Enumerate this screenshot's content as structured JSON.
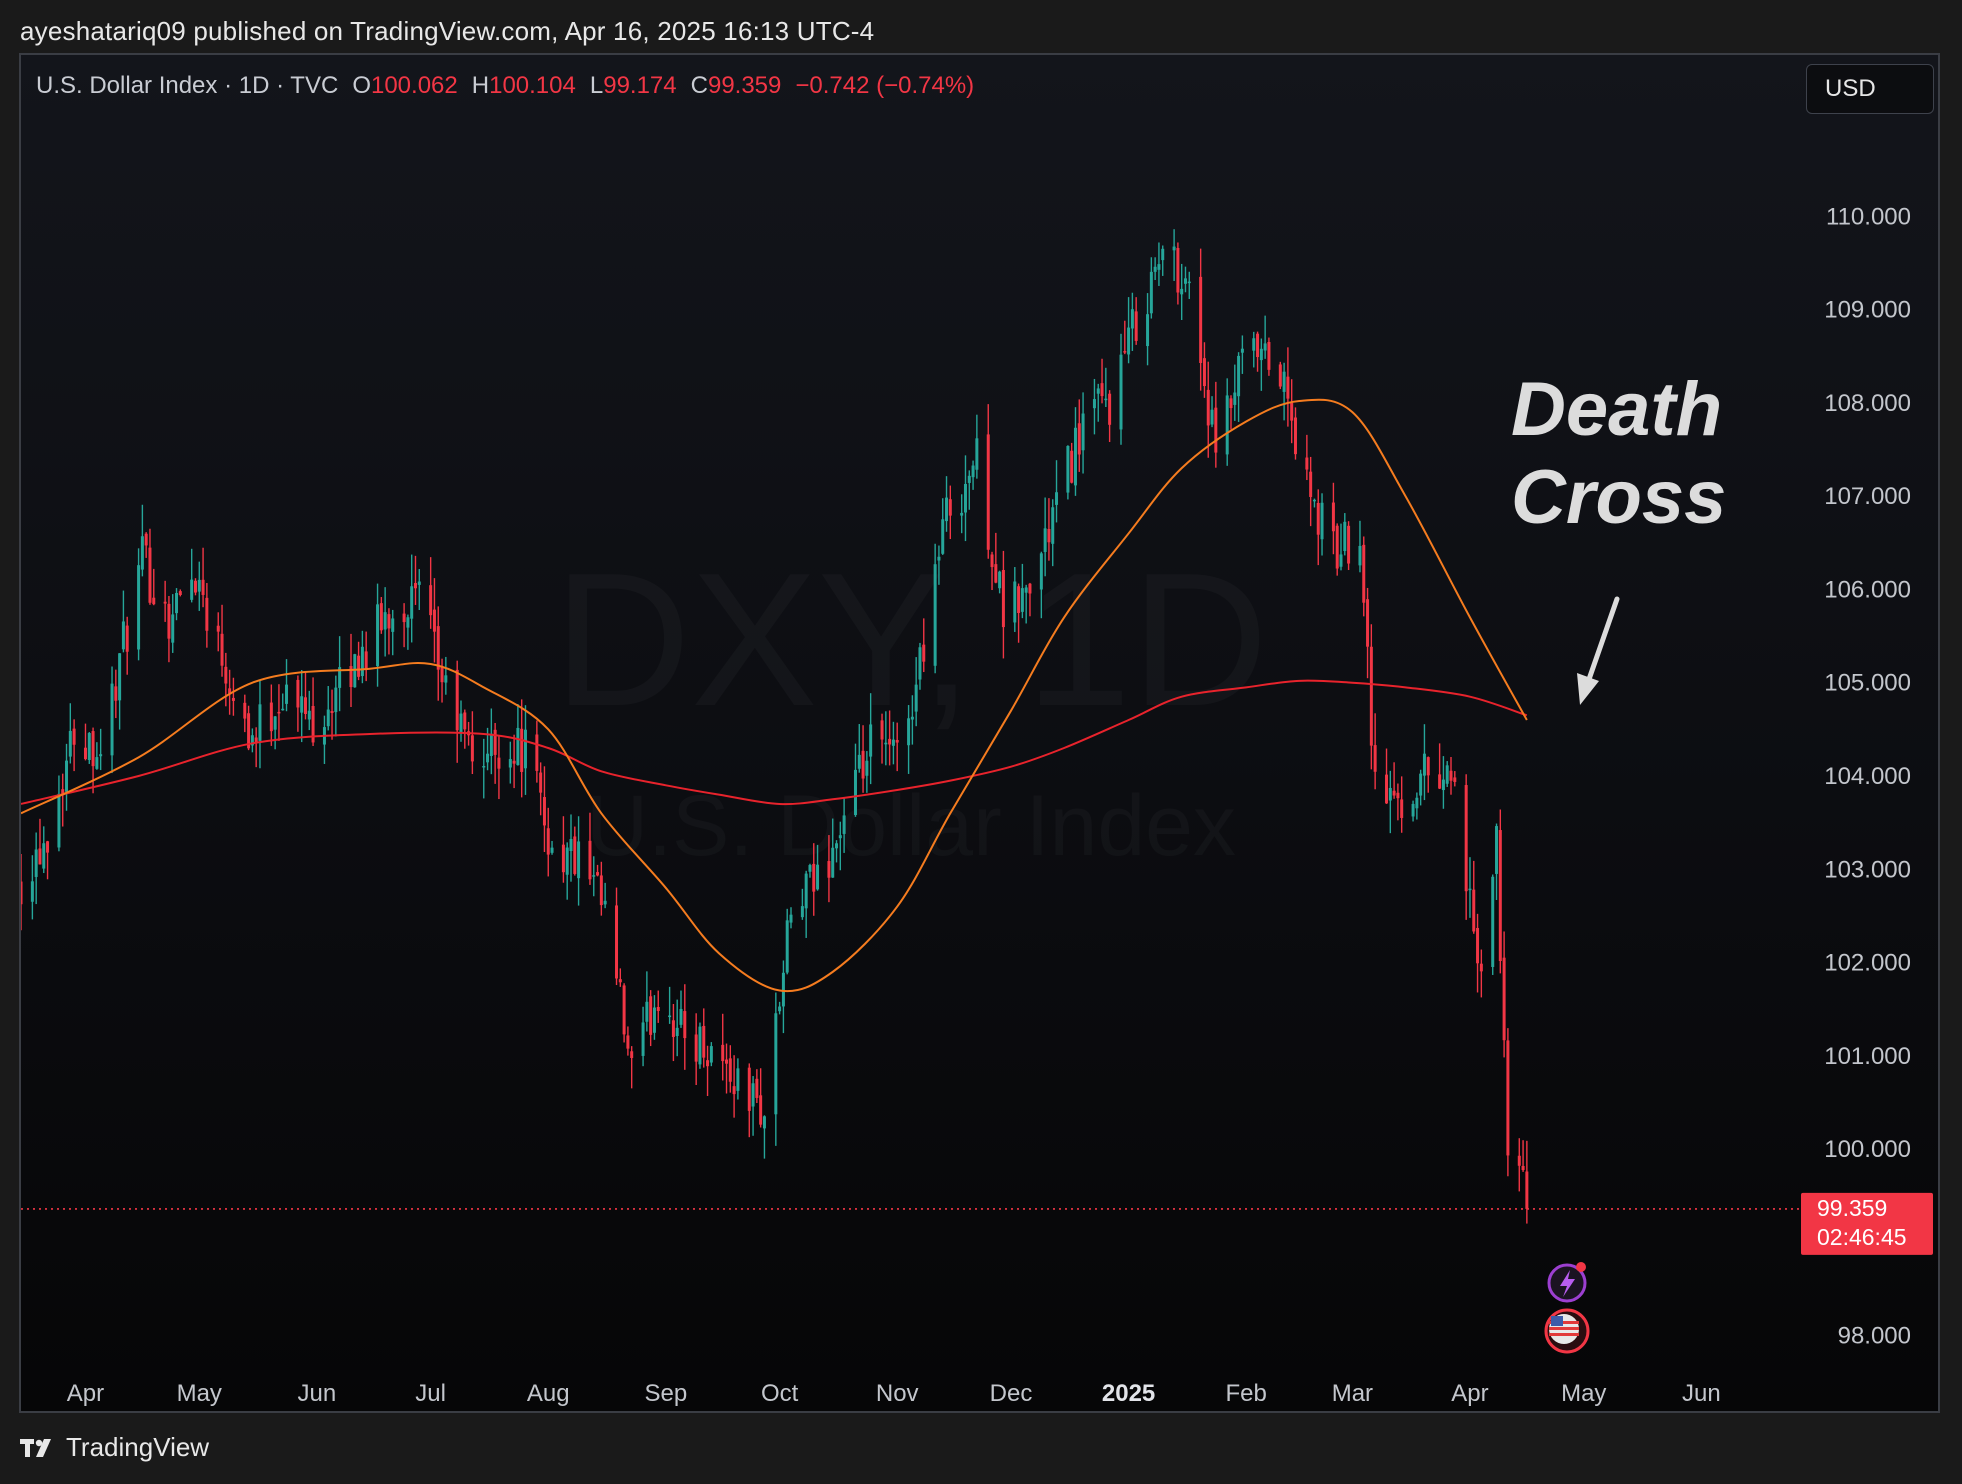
{
  "header": {
    "published_line": "ayeshatariq09 published on TradingView.com, Apr 16, 2025 16:13 UTC-4"
  },
  "legend": {
    "symbol": "U.S. Dollar Index · 1D · TVC",
    "open_label": "O",
    "open": "100.062",
    "high_label": "H",
    "high": "100.104",
    "low_label": "L",
    "low": "99.174",
    "close_label": "C",
    "close": "99.359",
    "change": "−0.742 (−0.74%)"
  },
  "currency_button": {
    "label": "USD"
  },
  "watermark": {
    "ticker": "DXY, 1D",
    "name": "U.S. Dollar Index"
  },
  "annotation": {
    "line1": "Death",
    "line2": "Cross"
  },
  "price_tag": {
    "price": "99.359",
    "countdown": "02:46:45"
  },
  "footer": {
    "brand": "TradingView"
  },
  "colors": {
    "up": "#26a69a",
    "down": "#f23645",
    "sma_fast": "#f57c1f",
    "sma_slow": "#e8232c",
    "price_line": "#f23645"
  },
  "icons": [
    "lightning-icon",
    "us-flag-icon",
    "tradingview-logo-icon",
    "arrow-icon"
  ],
  "chart_data": {
    "type": "candlestick",
    "instrument": "U.S. Dollar Index",
    "interval": "1D",
    "y_ticks": [
      "110.000",
      "109.000",
      "108.000",
      "107.000",
      "106.000",
      "105.000",
      "104.000",
      "103.000",
      "102.000",
      "101.000",
      "100.000",
      "98.000"
    ],
    "ylim": [
      97.6,
      111.3
    ],
    "x_ticks": [
      {
        "label": "Apr",
        "date": "2024-04-01"
      },
      {
        "label": "May",
        "date": "2024-05-01"
      },
      {
        "label": "Jun",
        "date": "2024-06-01"
      },
      {
        "label": "Jul",
        "date": "2024-07-01"
      },
      {
        "label": "Aug",
        "date": "2024-08-01"
      },
      {
        "label": "Sep",
        "date": "2024-09-01"
      },
      {
        "label": "Oct",
        "date": "2024-10-01"
      },
      {
        "label": "Nov",
        "date": "2024-11-01"
      },
      {
        "label": "Dec",
        "date": "2024-12-01"
      },
      {
        "label": "2025",
        "date": "2025-01-01",
        "bold": true
      },
      {
        "label": "Feb",
        "date": "2025-02-01"
      },
      {
        "label": "Mar",
        "date": "2025-03-01"
      },
      {
        "label": "Apr",
        "date": "2025-04-01"
      },
      {
        "label": "May",
        "date": "2025-05-01"
      },
      {
        "label": "Jun",
        "date": "2025-06-01"
      }
    ],
    "xlim": [
      "2024-03-15",
      "2025-06-22"
    ],
    "close_path": [
      [
        "2024-03-15",
        102.9
      ],
      [
        "2024-03-22",
        103.4
      ],
      [
        "2024-03-29",
        104.5
      ],
      [
        "2024-04-05",
        104.3
      ],
      [
        "2024-04-10",
        105.2
      ],
      [
        "2024-04-16",
        106.3
      ],
      [
        "2024-04-23",
        105.7
      ],
      [
        "2024-04-30",
        106.2
      ],
      [
        "2024-05-07",
        105.3
      ],
      [
        "2024-05-15",
        104.4
      ],
      [
        "2024-05-23",
        104.9
      ],
      [
        "2024-05-31",
        104.6
      ],
      [
        "2024-06-07",
        104.9
      ],
      [
        "2024-06-14",
        105.4
      ],
      [
        "2024-06-21",
        105.8
      ],
      [
        "2024-06-28",
        105.9
      ],
      [
        "2024-07-05",
        104.9
      ],
      [
        "2024-07-12",
        104.2
      ],
      [
        "2024-07-19",
        104.3
      ],
      [
        "2024-07-26",
        104.3
      ],
      [
        "2024-08-02",
        103.2
      ],
      [
        "2024-08-09",
        103.1
      ],
      [
        "2024-08-16",
        102.5
      ],
      [
        "2024-08-23",
        100.8
      ],
      [
        "2024-08-30",
        101.7
      ],
      [
        "2024-09-06",
        101.2
      ],
      [
        "2024-09-13",
        101.1
      ],
      [
        "2024-09-20",
        100.7
      ],
      [
        "2024-09-27",
        100.4
      ],
      [
        "2024-10-04",
        102.5
      ],
      [
        "2024-10-11",
        102.9
      ],
      [
        "2024-10-18",
        103.5
      ],
      [
        "2024-10-25",
        104.3
      ],
      [
        "2024-11-01",
        104.2
      ],
      [
        "2024-11-06",
        105.0
      ],
      [
        "2024-11-13",
        106.7
      ],
      [
        "2024-11-22",
        107.4
      ],
      [
        "2024-11-29",
        105.7
      ],
      [
        "2024-12-06",
        106.0
      ],
      [
        "2024-12-13",
        106.9
      ],
      [
        "2024-12-20",
        107.8
      ],
      [
        "2024-12-27",
        108.0
      ],
      [
        "2025-01-03",
        108.9
      ],
      [
        "2025-01-10",
        109.6
      ],
      [
        "2025-01-17",
        109.3
      ],
      [
        "2025-01-24",
        107.4
      ],
      [
        "2025-01-31",
        108.4
      ],
      [
        "2025-02-03",
        108.5
      ],
      [
        "2025-02-10",
        108.3
      ],
      [
        "2025-02-18",
        106.9
      ],
      [
        "2025-02-25",
        106.4
      ],
      [
        "2025-03-03",
        106.7
      ],
      [
        "2025-03-07",
        103.9
      ],
      [
        "2025-03-14",
        103.7
      ],
      [
        "2025-03-21",
        104.1
      ],
      [
        "2025-03-28",
        104.0
      ],
      [
        "2025-04-03",
        101.8
      ],
      [
        "2025-04-08",
        103.2
      ],
      [
        "2025-04-11",
        100.1
      ],
      [
        "2025-04-16",
        99.359
      ]
    ],
    "sma_fast": [
      [
        "2024-03-15",
        103.6
      ],
      [
        "2024-04-15",
        104.2
      ],
      [
        "2024-05-15",
        105.0
      ],
      [
        "2024-06-15",
        105.15
      ],
      [
        "2024-07-01",
        105.2
      ],
      [
        "2024-07-15",
        104.95
      ],
      [
        "2024-08-01",
        104.5
      ],
      [
        "2024-08-15",
        103.6
      ],
      [
        "2024-09-01",
        102.8
      ],
      [
        "2024-09-15",
        102.1
      ],
      [
        "2024-10-01",
        101.7
      ],
      [
        "2024-10-15",
        101.9
      ],
      [
        "2024-11-01",
        102.6
      ],
      [
        "2024-11-15",
        103.6
      ],
      [
        "2024-12-01",
        104.7
      ],
      [
        "2024-12-15",
        105.7
      ],
      [
        "2025-01-01",
        106.6
      ],
      [
        "2025-01-15",
        107.3
      ],
      [
        "2025-02-01",
        107.8
      ],
      [
        "2025-02-15",
        108.02
      ],
      [
        "2025-03-01",
        107.9
      ],
      [
        "2025-03-15",
        107.0
      ],
      [
        "2025-04-01",
        105.7
      ],
      [
        "2025-04-16",
        104.6
      ]
    ],
    "sma_slow": [
      [
        "2024-03-15",
        103.7
      ],
      [
        "2024-04-15",
        104.0
      ],
      [
        "2024-05-15",
        104.35
      ],
      [
        "2024-06-15",
        104.45
      ],
      [
        "2024-07-15",
        104.45
      ],
      [
        "2024-08-01",
        104.3
      ],
      [
        "2024-08-15",
        104.05
      ],
      [
        "2024-09-01",
        103.9
      ],
      [
        "2024-09-15",
        103.8
      ],
      [
        "2024-10-01",
        103.7
      ],
      [
        "2024-10-15",
        103.75
      ],
      [
        "2024-11-01",
        103.85
      ],
      [
        "2024-11-15",
        103.95
      ],
      [
        "2024-12-01",
        104.1
      ],
      [
        "2024-12-15",
        104.3
      ],
      [
        "2025-01-01",
        104.6
      ],
      [
        "2025-01-15",
        104.85
      ],
      [
        "2025-02-01",
        104.95
      ],
      [
        "2025-02-15",
        105.02
      ],
      [
        "2025-03-01",
        105.0
      ],
      [
        "2025-03-15",
        104.95
      ],
      [
        "2025-04-01",
        104.85
      ],
      [
        "2025-04-16",
        104.65
      ]
    ],
    "last_price": 99.359
  }
}
